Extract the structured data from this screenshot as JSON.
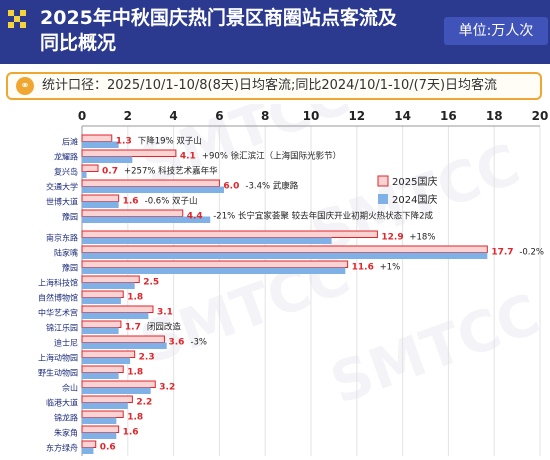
{
  "header": {
    "title_line1": "2025年中秋国庆热门景区商圈站点客流及",
    "title_line2": "同比概况",
    "unit": "单位:万人次"
  },
  "note": {
    "text": "统计口径：2025/10/1-10/8(8天)日均客流;同比2024/10/1-10/(7天)日均客流"
  },
  "watermark": "SMTCC",
  "colors": {
    "header_bg": "#2b3a8f",
    "bar_2025": "#fbd3d3",
    "bar_2025_border": "#e0252b",
    "bar_2024": "#7fb1e6",
    "value_label": "#e0252b",
    "note_border": "#f0a732"
  },
  "chart_data": {
    "type": "bar",
    "orientation": "horizontal",
    "xlim": [
      0,
      20
    ],
    "xticks": [
      "0",
      "2",
      "4",
      "6",
      "8",
      "10",
      "12",
      "14",
      "16",
      "18",
      "20"
    ],
    "legend": [
      "2025国庆",
      "2024国庆"
    ],
    "legend_position": "right-top",
    "grid": true,
    "groups": [
      {
        "rows": [
          {
            "name": "后滩",
            "v2025": 1.3,
            "v2025_label": "1.3",
            "v2024": 1.6,
            "annotation": "下降19%  双子山"
          },
          {
            "name": "龙耀路",
            "v2025": 4.1,
            "v2025_label": "4.1",
            "v2024": 2.2,
            "annotation": "+90%  徐汇滨江（上海国际光影节）"
          },
          {
            "name": "复兴岛",
            "v2025": 0.7,
            "v2025_label": "0.7",
            "v2024": 0.2,
            "annotation": "+257%  科技艺术嘉年华"
          },
          {
            "name": "交通大学",
            "v2025": 6.0,
            "v2025_label": "6.0",
            "v2024": 6.2,
            "annotation": "-3.4%  武康路"
          },
          {
            "name": "世博大道",
            "v2025": 1.6,
            "v2025_label": "1.6",
            "v2024": 1.6,
            "annotation": "-0.6%  双子山"
          },
          {
            "name": "豫园",
            "v2025": 4.4,
            "v2025_label": "4.4",
            "v2024": 5.6,
            "annotation": "-21%   长宁宜家荟聚  较去年国庆开业初期火热状态下降2成"
          }
        ]
      },
      {
        "rows": [
          {
            "name": "南京东路",
            "v2025": 12.9,
            "v2025_label": "12.9",
            "v2024": 10.9,
            "annotation": "+18%"
          },
          {
            "name": "陆家嘴",
            "v2025": 17.7,
            "v2025_label": "17.7",
            "v2024": 17.7,
            "annotation": "-0.2%"
          },
          {
            "name": "豫园",
            "v2025": 11.6,
            "v2025_label": "11.6",
            "v2024": 11.5,
            "annotation": "+1%"
          },
          {
            "name": "上海科技馆",
            "v2025": 2.5,
            "v2025_label": "2.5",
            "v2024": 2.3,
            "annotation": ""
          },
          {
            "name": "自然博物馆",
            "v2025": 1.8,
            "v2025_label": "1.8",
            "v2024": 1.7,
            "annotation": ""
          },
          {
            "name": "中华艺术宫",
            "v2025": 3.1,
            "v2025_label": "3.1",
            "v2024": 2.9,
            "annotation": ""
          },
          {
            "name": "锦江乐园",
            "v2025": 1.7,
            "v2025_label": "1.7",
            "v2024": 1.6,
            "annotation": "闭园改造"
          },
          {
            "name": "迪士尼",
            "v2025": 3.6,
            "v2025_label": "3.6",
            "v2024": 3.7,
            "annotation": "-3%"
          },
          {
            "name": "上海动物园",
            "v2025": 2.3,
            "v2025_label": "2.3",
            "v2024": 2.1,
            "annotation": ""
          },
          {
            "name": "野生动物园",
            "v2025": 1.8,
            "v2025_label": "1.8",
            "v2024": 1.6,
            "annotation": ""
          },
          {
            "name": "佘山",
            "v2025": 3.2,
            "v2025_label": "3.2",
            "v2024": 3.0,
            "annotation": ""
          },
          {
            "name": "临港大道",
            "v2025": 2.2,
            "v2025_label": "2.2",
            "v2024": 2.0,
            "annotation": ""
          },
          {
            "name": "锦龙路",
            "v2025": 1.8,
            "v2025_label": "1.8",
            "v2024": 1.5,
            "annotation": ""
          },
          {
            "name": "朱家角",
            "v2025": 1.6,
            "v2025_label": "1.6",
            "v2024": 1.5,
            "annotation": ""
          },
          {
            "name": "东方绿舟",
            "v2025": 0.6,
            "v2025_label": "0.6",
            "v2024": 0.5,
            "annotation": ""
          }
        ]
      }
    ]
  }
}
